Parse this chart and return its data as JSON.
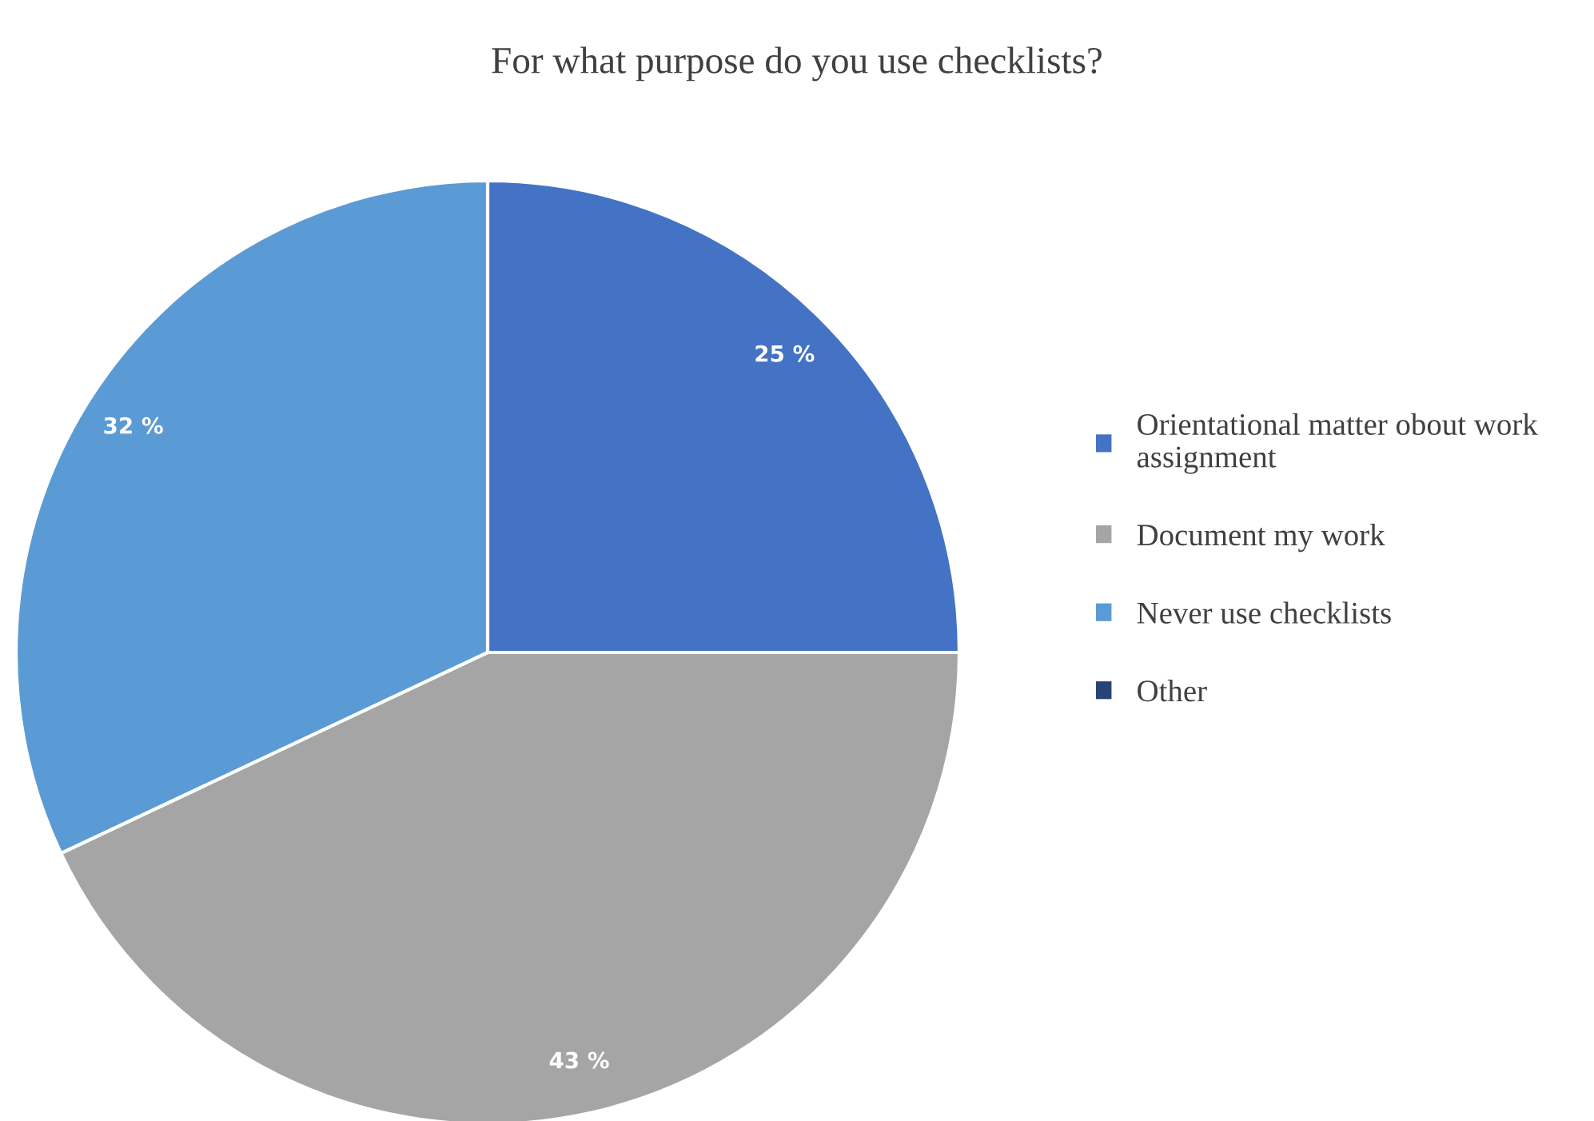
{
  "chart_data": {
    "type": "pie",
    "title": "For what purpose do you use checklists?",
    "categories": [
      "Orientational matter obout work assignment",
      "Document my work",
      "Never use checklists",
      "Other"
    ],
    "values": [
      25,
      43,
      32,
      0
    ],
    "colors": [
      "#4472c4",
      "#a5a5a5",
      "#5b9bd5",
      "#264478"
    ],
    "value_labels": [
      "25 %",
      "43 %",
      "32 %",
      null
    ],
    "legend": "right"
  }
}
